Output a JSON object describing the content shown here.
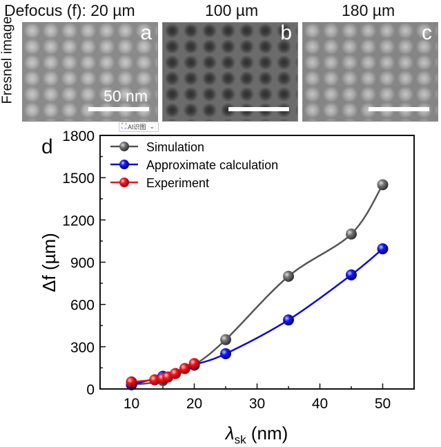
{
  "header": {
    "defocus_label": "Defocus (f): 20 µm",
    "col_b": "100 µm",
    "col_c": "180 µm",
    "row_label": "Fresnel image"
  },
  "panels": [
    {
      "letter": "a",
      "scalebar_label": "50 nm",
      "contrast": "bright spots"
    },
    {
      "letter": "b",
      "scalebar_label": "",
      "contrast": "dark spots"
    },
    {
      "letter": "c",
      "scalebar_label": "",
      "contrast": "bright spots"
    }
  ],
  "overlay": {
    "ai_button_label": "AI识图",
    "ai_icon": "scan-icon",
    "chevron": "⌄"
  },
  "chart_data": {
    "type": "line",
    "panel_letter": "d",
    "title": "",
    "xlabel": "λsk (nm)",
    "xlabel_main": "λ",
    "xlabel_sub": "sk",
    "xlabel_unit": " (nm)",
    "ylabel": "Δf (µm)",
    "xlim": [
      5,
      55
    ],
    "ylim": [
      0,
      1800
    ],
    "xticks": [
      10,
      20,
      30,
      40,
      50
    ],
    "yticks": [
      0,
      300,
      600,
      900,
      1200,
      1500,
      1800
    ],
    "grid": false,
    "legend_position": "top-left",
    "series": [
      {
        "name": "Simulation",
        "color": "#555555",
        "x": [
          10,
          15,
          20,
          25,
          35,
          45,
          50
        ],
        "y": [
          30,
          60,
          170,
          350,
          800,
          1100,
          1450
        ]
      },
      {
        "name": "Approximate calculation",
        "color": "#0a0ad6",
        "x": [
          10,
          15,
          20,
          25,
          35,
          45,
          50
        ],
        "y": [
          30,
          90,
          170,
          250,
          490,
          810,
          995
        ]
      },
      {
        "name": "Experiment",
        "color": "#e8141a",
        "x": [
          10,
          13.7,
          15,
          15.8,
          17,
          18.5,
          20
        ],
        "y": [
          50,
          65,
          75,
          85,
          110,
          145,
          180
        ]
      }
    ]
  }
}
